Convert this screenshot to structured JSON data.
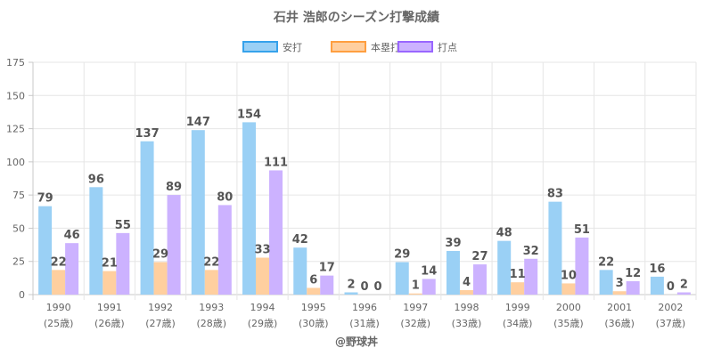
{
  "chart_data": {
    "type": "bar",
    "title": "石井 浩郎のシーズン打撃成績",
    "categories": [
      "1990",
      "1991",
      "1992",
      "1993",
      "1994",
      "1995",
      "1996",
      "1997",
      "1998",
      "1999",
      "2000",
      "2001",
      "2002"
    ],
    "age_labels": [
      "(25歳)",
      "(26歳)",
      "(27歳)",
      "(28歳)",
      "(29歳)",
      "(30歳)",
      "(31歳)",
      "(32歳)",
      "(33歳)",
      "(34歳)",
      "(35歳)",
      "(36歳)",
      "(37歳)"
    ],
    "series": [
      {
        "name": "安打",
        "values": [
          79,
          96,
          137,
          147,
          154,
          42,
          2,
          29,
          39,
          48,
          83,
          22,
          16
        ],
        "color": "#9ad0f5",
        "border": "#36a2eb"
      },
      {
        "name": "本塁打",
        "values": [
          22,
          21,
          29,
          22,
          33,
          6,
          0,
          1,
          4,
          11,
          10,
          3,
          0
        ],
        "color": "#ffcf9f",
        "border": "#ff9f40"
      },
      {
        "name": "打点",
        "values": [
          46,
          55,
          89,
          80,
          111,
          17,
          0,
          14,
          27,
          32,
          51,
          12,
          2
        ],
        "color": "#ccb2ff",
        "border": "#9966ff"
      }
    ],
    "y_ticks": [
      "0",
      "25",
      "50",
      "75",
      "100",
      "125",
      "150",
      "175"
    ],
    "ylim": [
      0,
      175
    ],
    "bar_scale": 0.843,
    "grid": true,
    "legend_position": "top-center"
  },
  "footer": {
    "credit": "@野球丼"
  }
}
